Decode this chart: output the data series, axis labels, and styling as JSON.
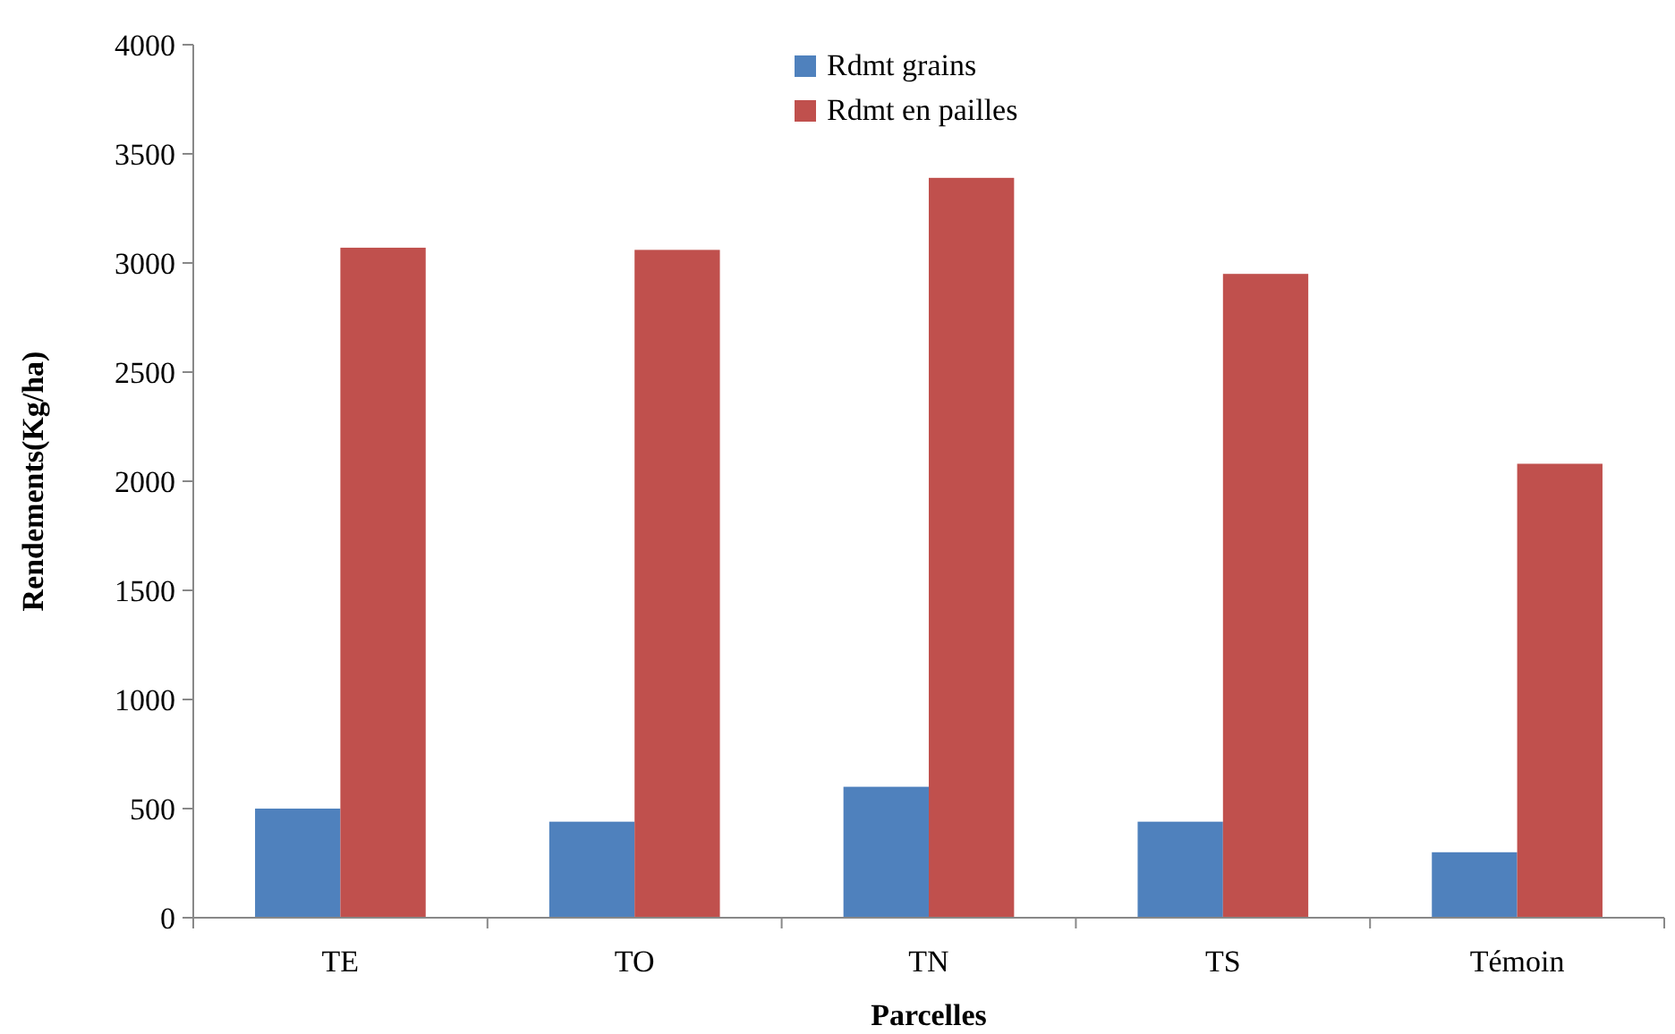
{
  "chart_data": {
    "type": "bar",
    "xlabel": "Parcelles",
    "ylabel": "Rendements(Kg/ha)",
    "categories": [
      "TE",
      "TO",
      "TN",
      "TS",
      "Témoin"
    ],
    "series": [
      {
        "name": "Rdmt grains",
        "color": "#4f81bd",
        "values": [
          500,
          440,
          600,
          440,
          300
        ]
      },
      {
        "name": "Rdmt en pailles",
        "color": "#c0504d",
        "values": [
          3070,
          3060,
          3390,
          2950,
          2080
        ]
      }
    ],
    "ylim": [
      0,
      4000
    ],
    "yticks": [
      0,
      500,
      1000,
      1500,
      2000,
      2500,
      3000,
      3500,
      4000
    ],
    "grid": false,
    "legend": "top"
  }
}
